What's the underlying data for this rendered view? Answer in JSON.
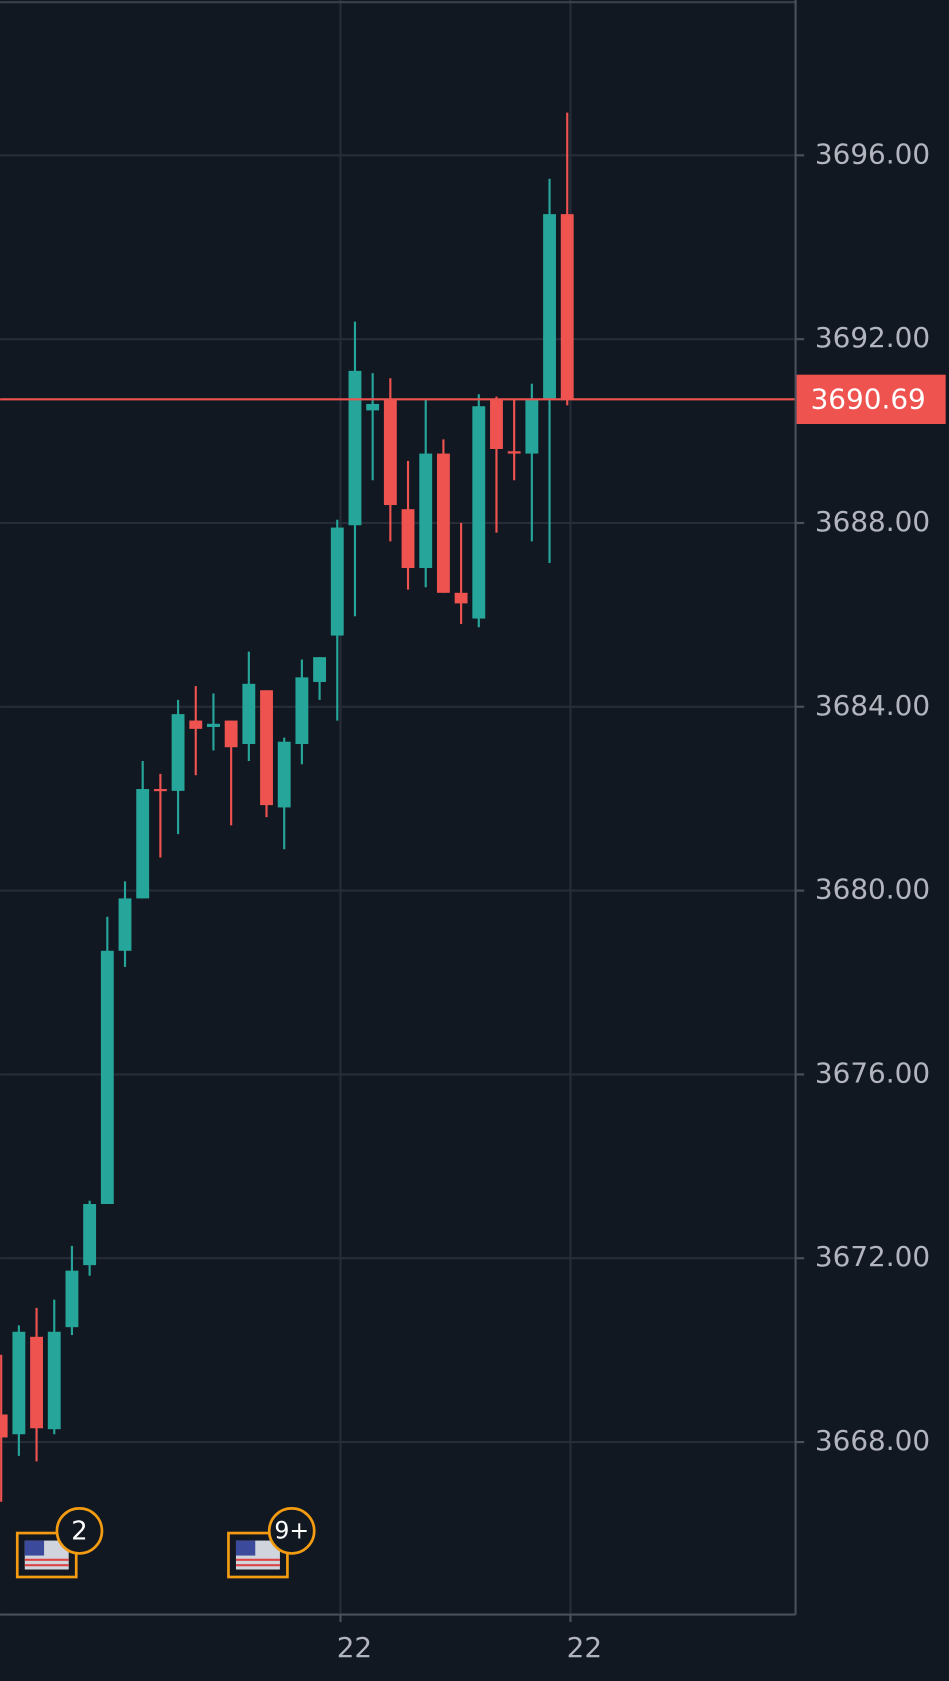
{
  "chart_data": {
    "type": "candlestick",
    "categories": [
      null,
      null,
      null,
      null,
      null,
      null,
      null,
      null,
      null,
      null,
      null,
      null,
      null,
      null,
      null,
      null,
      null,
      null,
      null,
      "22",
      null,
      null,
      null,
      null,
      null,
      null,
      null,
      null,
      null,
      null,
      null,
      null,
      "22"
    ],
    "open": [
      3668.6,
      3668.17,
      3670.29,
      3668.28,
      3670.5,
      3671.85,
      3673.18,
      3678.69,
      3679.83,
      3682.21,
      3682.17,
      3683.7,
      3683.56,
      3683.7,
      3683.19,
      3684.36,
      3681.81,
      3683.19,
      3684.54,
      3685.55,
      3687.95,
      3690.45,
      3690.7,
      3688.3,
      3687.02,
      3689.51,
      3686.48,
      3685.92,
      3690.68,
      3689.56,
      3689.51,
      3690.68,
      3694.72
    ],
    "high": [
      3669.9,
      3670.54,
      3670.92,
      3671.1,
      3672.27,
      3673.25,
      3679.43,
      3680.2,
      3682.82,
      3682.54,
      3684.15,
      3684.45,
      3684.29,
      3683.7,
      3685.2,
      3684.36,
      3683.33,
      3685.03,
      3685.08,
      3688.07,
      3692.38,
      3691.26,
      3691.15,
      3689.35,
      3690.68,
      3689.82,
      3688.0,
      3690.8,
      3690.75,
      3690.7,
      3691.03,
      3695.49,
      3696.93
    ],
    "low": [
      3666.7,
      3667.7,
      3667.58,
      3668.17,
      3670.33,
      3671.62,
      3673.18,
      3678.34,
      3679.83,
      3680.72,
      3681.23,
      3682.51,
      3683.05,
      3681.42,
      3682.82,
      3681.6,
      3680.9,
      3682.75,
      3684.15,
      3683.7,
      3685.97,
      3688.93,
      3687.6,
      3686.55,
      3686.6,
      3686.48,
      3685.8,
      3685.73,
      3687.79,
      3688.93,
      3687.6,
      3687.13,
      3690.56
    ],
    "close": [
      3668.1,
      3670.4,
      3668.3,
      3670.4,
      3671.73,
      3673.18,
      3678.69,
      3679.83,
      3682.21,
      3682.17,
      3683.84,
      3683.52,
      3683.63,
      3683.12,
      3684.5,
      3681.86,
      3683.24,
      3684.64,
      3685.08,
      3687.9,
      3691.31,
      3690.59,
      3688.39,
      3687.02,
      3689.51,
      3686.48,
      3686.25,
      3690.54,
      3689.61,
      3689.51,
      3690.68,
      3694.72,
      3690.69
    ],
    "up_color": "#26a69a",
    "down_color": "#ef5350",
    "ylim": [
      3664.27,
      3699.38
    ],
    "yticks": [
      {
        "value": 3668,
        "label": "3668.00"
      },
      {
        "value": 3672,
        "label": "3672.00"
      },
      {
        "value": 3676,
        "label": "3676.00"
      },
      {
        "value": 3680,
        "label": "3680.00"
      },
      {
        "value": 3684,
        "label": "3684.00"
      },
      {
        "value": 3688,
        "label": "3688.00"
      },
      {
        "value": 3692,
        "label": "3692.00"
      },
      {
        "value": 3696,
        "label": "3696.00"
      }
    ],
    "grid": true,
    "last_price": 3690.69,
    "events": [
      {
        "count": 2
      },
      {
        "count": "9+"
      }
    ]
  }
}
